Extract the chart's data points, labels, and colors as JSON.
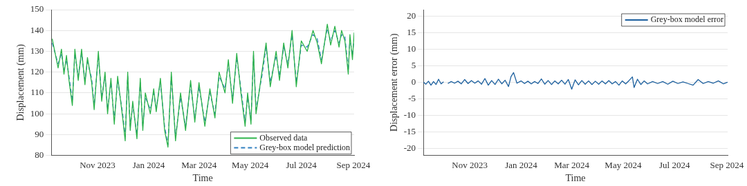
{
  "chart_data": [
    {
      "type": "line",
      "xlabel": "Time",
      "ylabel": "Displacement (mm)",
      "x": [
        "2023-09-08",
        "2023-09-15",
        "2023-09-19",
        "2023-09-22",
        "2023-09-25",
        "2023-09-28",
        "2023-10-02",
        "2023-10-05",
        "2023-10-09",
        "2023-10-13",
        "2023-10-17",
        "2023-10-20",
        "2023-10-25",
        "2023-10-28",
        "2023-11-02",
        "2023-11-06",
        "2023-11-10",
        "2023-11-13",
        "2023-11-17",
        "2023-11-21",
        "2023-11-25",
        "2023-12-01",
        "2023-12-04",
        "2023-12-07",
        "2023-12-10",
        "2023-12-13",
        "2023-12-18",
        "2023-12-22",
        "2023-12-25",
        "2023-12-28",
        "2024-01-03",
        "2024-01-07",
        "2024-01-10",
        "2024-01-15",
        "2024-01-20",
        "2024-01-24",
        "2024-01-28",
        "2024-02-02",
        "2024-02-08",
        "2024-02-14",
        "2024-02-20",
        "2024-02-25",
        "2024-03-01",
        "2024-03-08",
        "2024-03-14",
        "2024-03-20",
        "2024-03-25",
        "2024-04-01",
        "2024-04-05",
        "2024-04-10",
        "2024-04-15",
        "2024-04-20",
        "2024-04-25",
        "2024-04-28",
        "2024-05-02",
        "2024-05-05",
        "2024-05-08",
        "2024-05-15",
        "2024-05-20",
        "2024-05-25",
        "2024-06-01",
        "2024-06-05",
        "2024-06-10",
        "2024-06-15",
        "2024-06-20",
        "2024-06-25",
        "2024-07-01",
        "2024-07-08",
        "2024-07-15",
        "2024-07-20",
        "2024-07-25",
        "2024-08-01",
        "2024-08-05",
        "2024-08-10",
        "2024-08-15",
        "2024-08-18",
        "2024-08-22",
        "2024-08-26",
        "2024-08-28",
        "2024-08-31",
        "2024-09-02"
      ],
      "series": [
        {
          "name": "Observed data",
          "color": "#2db34a",
          "line_style": "solid",
          "values": [
            136,
            122,
            131,
            119,
            128,
            116,
            104,
            131,
            116,
            131,
            114,
            127,
            115,
            102,
            130,
            106,
            120,
            100,
            117,
            95,
            118,
            98,
            87,
            120,
            92,
            106,
            88,
            117,
            92,
            110,
            100,
            112,
            101,
            117,
            92,
            84,
            120,
            87,
            110,
            92,
            116,
            96,
            115,
            94,
            112,
            98,
            120,
            110,
            126,
            105,
            129,
            110,
            94,
            110,
            95,
            130,
            100,
            120,
            134,
            113,
            130,
            116,
            134,
            122,
            140,
            113,
            135,
            130,
            140,
            134,
            124,
            143,
            133,
            142,
            132,
            140,
            135,
            119,
            138,
            126,
            139
          ]
        },
        {
          "name": "Grey-box model prediction",
          "color": "#2e7fc0",
          "line_style": "dashed",
          "values": [
            134,
            124,
            129,
            121,
            126,
            118,
            106,
            129,
            118,
            129,
            116,
            125,
            117,
            104,
            128,
            108,
            118,
            102,
            115,
            97,
            116,
            100,
            89,
            118,
            94,
            104,
            90,
            115,
            94,
            108,
            102,
            110,
            103,
            115,
            94,
            85,
            118,
            89,
            108,
            94,
            114,
            98,
            113,
            96,
            110,
            100,
            118,
            112,
            124,
            107,
            127,
            112,
            96,
            108,
            97,
            128,
            102,
            118,
            132,
            115,
            128,
            118,
            132,
            124,
            138,
            115,
            133,
            132,
            138,
            136,
            126,
            141,
            135,
            140,
            134,
            138,
            137,
            121,
            136,
            128,
            137
          ]
        }
      ],
      "xlim": [
        "2023-09-07",
        "2024-09-02"
      ],
      "xticks": [
        {
          "value": "2023-11-01",
          "label": "Nov 2023"
        },
        {
          "value": "2024-01-01",
          "label": "Jan 2024"
        },
        {
          "value": "2024-03-01",
          "label": "Mar 2024"
        },
        {
          "value": "2024-05-01",
          "label": "May 2024"
        },
        {
          "value": "2024-07-01",
          "label": "Jul 2024"
        },
        {
          "value": "2024-09-01",
          "label": "Sep 2024"
        }
      ],
      "ylim": [
        80,
        150
      ],
      "yticks": [
        80,
        90,
        100,
        110,
        120,
        130,
        140,
        150
      ],
      "grid": "y",
      "legend": "bottom right",
      "marker": "none"
    },
    {
      "type": "line",
      "xlabel": "Time",
      "ylabel": "Displacement error (mm)",
      "x": [
        "2023-09-07",
        "2023-09-10",
        "2023-09-13",
        "2023-09-16",
        "2023-09-19",
        "2023-09-22",
        "2023-09-25",
        "2023-09-28",
        "2023-10-01",
        "2023-10-03",
        "2023-10-06",
        "2023-10-10",
        "2023-10-14",
        "2023-10-18",
        "2023-10-22",
        "2023-10-26",
        "2023-10-30",
        "2023-11-03",
        "2023-11-07",
        "2023-11-11",
        "2023-11-15",
        "2023-11-19",
        "2023-11-23",
        "2023-11-27",
        "2023-12-01",
        "2023-12-05",
        "2023-12-09",
        "2023-12-13",
        "2023-12-17",
        "2023-12-20",
        "2023-12-23",
        "2023-12-27",
        "2024-01-01",
        "2024-01-05",
        "2024-01-09",
        "2024-01-13",
        "2024-01-17",
        "2024-01-21",
        "2024-01-25",
        "2024-01-29",
        "2024-02-02",
        "2024-02-06",
        "2024-02-10",
        "2024-02-14",
        "2024-02-18",
        "2024-02-22",
        "2024-02-26",
        "2024-03-01",
        "2024-03-05",
        "2024-03-09",
        "2024-03-13",
        "2024-03-17",
        "2024-03-21",
        "2024-03-25",
        "2024-03-29",
        "2024-04-02",
        "2024-04-06",
        "2024-04-10",
        "2024-04-14",
        "2024-04-18",
        "2024-04-22",
        "2024-04-26",
        "2024-04-30",
        "2024-05-04",
        "2024-05-08",
        "2024-05-12",
        "2024-05-14",
        "2024-05-18",
        "2024-05-22",
        "2024-05-26",
        "2024-05-30",
        "2024-06-05",
        "2024-06-11",
        "2024-06-17",
        "2024-06-23",
        "2024-06-29",
        "2024-07-05",
        "2024-07-11",
        "2024-07-17",
        "2024-07-23",
        "2024-07-29",
        "2024-08-04",
        "2024-08-10",
        "2024-08-16",
        "2024-08-22",
        "2024-08-28",
        "2024-09-02"
      ],
      "series": [
        {
          "name": "Grey-box model error",
          "color": "#1b5f9e",
          "line_style": "solid",
          "values": [
            0.1,
            -0.5,
            0.4,
            -0.8,
            0.3,
            -0.6,
            1,
            -0.4,
            0.2,
            null,
            -0.3,
            0.3,
            -0.2,
            0.4,
            -0.4,
            0.9,
            -0.3,
            0.6,
            -0.2,
            0.5,
            -0.5,
            1.2,
            -0.8,
            0.6,
            -0.6,
            1,
            -0.4,
            0.7,
            -1.2,
            1.8,
            3,
            -0.2,
            0.5,
            -0.3,
            0.4,
            -0.4,
            0.3,
            -0.3,
            1.1,
            -0.5,
            0.6,
            -0.6,
            0.5,
            -0.4,
            0.7,
            -0.5,
            0.9,
            -2,
            0.8,
            -0.7,
            0.6,
            -0.5,
            0.5,
            -0.6,
            0.4,
            -0.5,
            0.5,
            -0.4,
            0.6,
            -0.4,
            0.3,
            -0.8,
            0.5,
            -0.4,
            0.6,
            1.7,
            -1.5,
            1,
            -0.6,
            0.5,
            -0.4,
            0.3,
            -0.3,
            0.3,
            -0.5,
            0.4,
            -0.3,
            0.2,
            -0.3,
            -0.8,
            0.9,
            -0.3,
            0.3,
            -0.2,
            0.5,
            -0.4,
            0.1
          ]
        }
      ],
      "xlim": [
        "2023-09-07",
        "2024-09-02"
      ],
      "xticks": [
        {
          "value": "2023-11-01",
          "label": "Nov 2023"
        },
        {
          "value": "2024-01-01",
          "label": "Jan 2024"
        },
        {
          "value": "2024-03-01",
          "label": "Mar 2024"
        },
        {
          "value": "2024-05-01",
          "label": "May 2024"
        },
        {
          "value": "2024-07-01",
          "label": "Jul 2024"
        },
        {
          "value": "2024-09-01",
          "label": "Sep 2024"
        }
      ],
      "ylim": [
        -22,
        22
      ],
      "yticks": [
        -20,
        -15,
        -10,
        -5,
        0,
        5,
        10,
        15,
        20
      ],
      "grid": "y",
      "legend": "top right",
      "marker": "none"
    }
  ]
}
